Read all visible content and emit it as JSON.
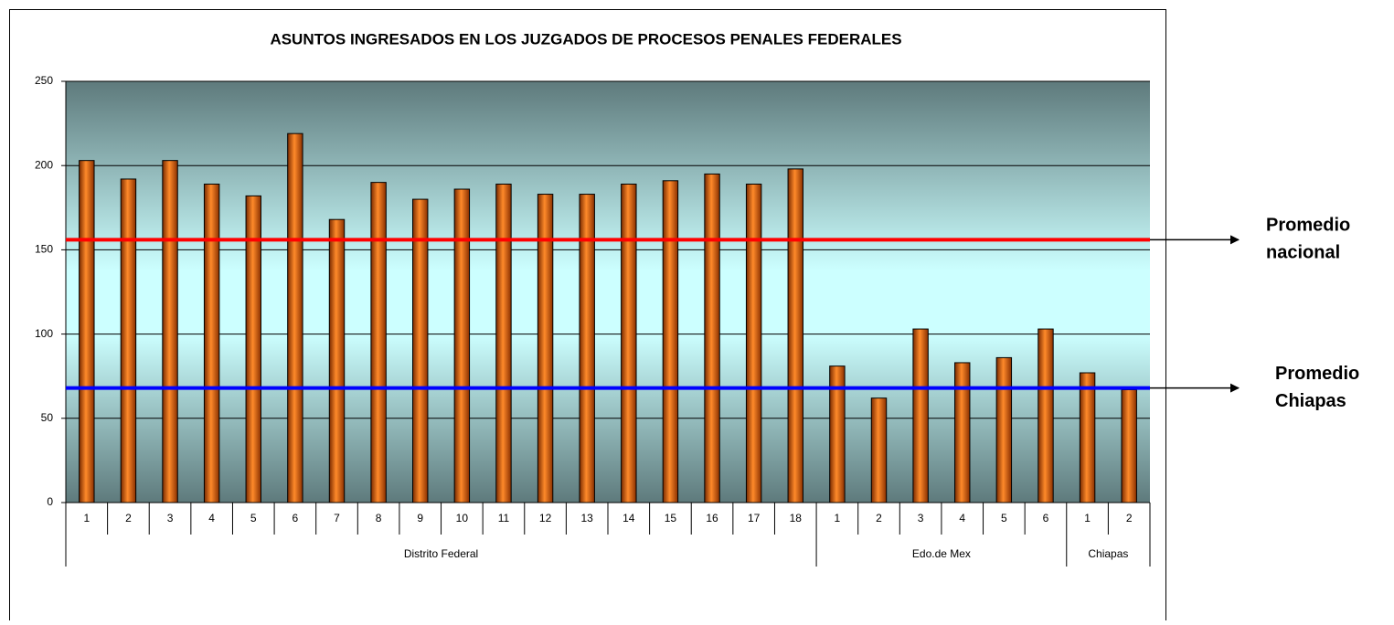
{
  "chart_data": {
    "type": "bar",
    "title": "ASUNTOS INGRESADOS EN LOS JUZGADOS DE PROCESOS PENALES FEDERALES",
    "categories": [
      "1",
      "2",
      "3",
      "4",
      "5",
      "6",
      "7",
      "8",
      "9",
      "10",
      "11",
      "12",
      "13",
      "14",
      "15",
      "16",
      "17",
      "18",
      "1",
      "2",
      "3",
      "4",
      "5",
      "6",
      "1",
      "2"
    ],
    "values": [
      203,
      192,
      203,
      189,
      182,
      219,
      168,
      190,
      180,
      186,
      189,
      183,
      183,
      189,
      191,
      195,
      189,
      198,
      81,
      62,
      103,
      83,
      86,
      103,
      77,
      67
    ],
    "groups": [
      {
        "name": "Distrito Federal",
        "count": 18
      },
      {
        "name": "Edo.de Mex",
        "count": 6
      },
      {
        "name": "Chiapas",
        "count": 2
      }
    ],
    "color": "#e0600a",
    "ylim": [
      0,
      250
    ],
    "yticks": [
      0,
      50,
      100,
      150,
      200,
      250
    ],
    "grid": true,
    "reference_lines": [
      {
        "value": 156,
        "color": "#ff0000",
        "label": [
          "Promedio",
          "nacional"
        ]
      },
      {
        "value": 68,
        "color": "#0000ff",
        "label": [
          "Promedio",
          "Chiapas"
        ]
      }
    ]
  }
}
